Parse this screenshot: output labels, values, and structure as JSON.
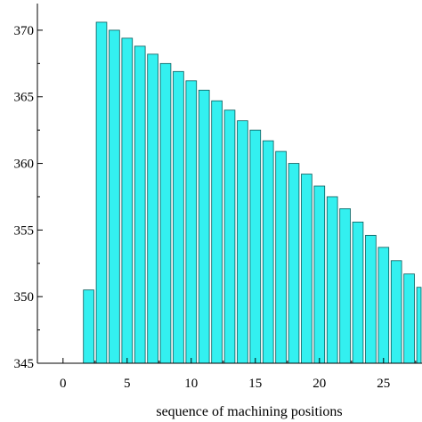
{
  "chart_data": {
    "type": "bar",
    "title": "",
    "xlabel": "sequence of machining positions",
    "ylabel": "",
    "x": [
      2,
      3,
      4,
      5,
      6,
      7,
      8,
      9,
      10,
      11,
      12,
      13,
      14,
      15,
      16,
      17,
      18,
      19,
      20,
      21,
      22,
      23,
      24,
      25,
      26,
      27,
      28
    ],
    "values": [
      350.5,
      370.6,
      370.0,
      369.4,
      368.8,
      368.2,
      367.5,
      366.9,
      366.2,
      365.5,
      364.7,
      364.0,
      363.2,
      362.5,
      361.7,
      360.9,
      360.0,
      359.2,
      358.3,
      357.5,
      356.6,
      355.6,
      354.6,
      353.7,
      352.7,
      351.7,
      350.7
    ],
    "xlim": [
      -2,
      28
    ],
    "ylim": [
      345,
      372
    ],
    "x_ticks": [
      0,
      5,
      10,
      15,
      20,
      25
    ],
    "y_ticks": [
      345,
      350,
      355,
      360,
      365,
      370
    ],
    "grid": false,
    "bar_color": "#33f0f0",
    "bar_edge_color": "#0a5a5a"
  }
}
